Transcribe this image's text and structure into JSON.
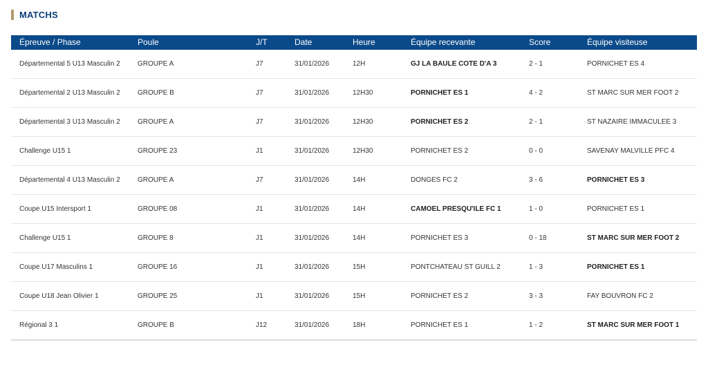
{
  "section": {
    "title": "MATCHS"
  },
  "table": {
    "headers": [
      "Épreuve / Phase",
      "Poule",
      "J/T",
      "Date",
      "Heure",
      "Équipe recevante",
      "Score",
      "Équipe visiteuse"
    ],
    "rows": [
      {
        "epreuve": "Départemental 5 U13 Masculin 2",
        "poule": "GROUPE A",
        "jt": "J7",
        "date": "31/01/2026",
        "heure": "12H",
        "recevante": "GJ LA BAULE COTE D'A 3",
        "score": "2 - 1",
        "visiteuse": "PORNICHET ES 4",
        "winner": "home"
      },
      {
        "epreuve": "Départemental 2 U13 Masculin 2",
        "poule": "GROUPE B",
        "jt": "J7",
        "date": "31/01/2026",
        "heure": "12H30",
        "recevante": "PORNICHET ES 1",
        "score": "4 - 2",
        "visiteuse": "ST MARC SUR MER FOOT 2",
        "winner": "home"
      },
      {
        "epreuve": "Départemental 3 U13 Masculin 2",
        "poule": "GROUPE A",
        "jt": "J7",
        "date": "31/01/2026",
        "heure": "12H30",
        "recevante": "PORNICHET ES 2",
        "score": "2 - 1",
        "visiteuse": "ST NAZAIRE IMMACULEE 3",
        "winner": "home"
      },
      {
        "epreuve": "Challenge U15 1",
        "poule": "GROUPE 23",
        "jt": "J1",
        "date": "31/01/2026",
        "heure": "12H30",
        "recevante": "PORNICHET ES 2",
        "score": "0 - 0",
        "visiteuse": "SAVENAY MALVILLE PFC 4",
        "winner": "none"
      },
      {
        "epreuve": "Départemental 4 U13 Masculin 2",
        "poule": "GROUPE A",
        "jt": "J7",
        "date": "31/01/2026",
        "heure": "14H",
        "recevante": "DONGES FC 2",
        "score": "3 - 6",
        "visiteuse": "PORNICHET ES 3",
        "winner": "away"
      },
      {
        "epreuve": "Coupe U15 Intersport 1",
        "poule": "GROUPE 08",
        "jt": "J1",
        "date": "31/01/2026",
        "heure": "14H",
        "recevante": "CAMOEL PRESQU'ILE FC 1",
        "score": "1 - 0",
        "visiteuse": "PORNICHET ES 1",
        "winner": "home"
      },
      {
        "epreuve": "Challenge U15 1",
        "poule": "GROUPE 8",
        "jt": "J1",
        "date": "31/01/2026",
        "heure": "14H",
        "recevante": "PORNICHET ES 3",
        "score": "0 - 18",
        "visiteuse": "ST MARC SUR MER FOOT 2",
        "winner": "away"
      },
      {
        "epreuve": "Coupe U17 Masculins 1",
        "poule": "GROUPE 16",
        "jt": "J1",
        "date": "31/01/2026",
        "heure": "15H",
        "recevante": "PONTCHATEAU ST GUILL 2",
        "score": "1 - 3",
        "visiteuse": "PORNICHET ES 1",
        "winner": "away"
      },
      {
        "epreuve": "Coupe U18 Jean Olivier 1",
        "poule": "GROUPE 25",
        "jt": "J1",
        "date": "31/01/2026",
        "heure": "15H",
        "recevante": "PORNICHET ES 2",
        "score": "3 - 3",
        "visiteuse": "FAY BOUVRON FC 2",
        "winner": "none"
      },
      {
        "epreuve": "Régional 3 1",
        "poule": "GROUPE B",
        "jt": "J12",
        "date": "31/01/2026",
        "heure": "18H",
        "recevante": "PORNICHET ES 1",
        "score": "1 - 2",
        "visiteuse": "ST MARC SUR MER FOOT 1",
        "winner": "away"
      }
    ]
  },
  "colors": {
    "header_bg": "#0b4a8a",
    "title": "#0b3f7a",
    "title_accent": "#b39a6b"
  }
}
